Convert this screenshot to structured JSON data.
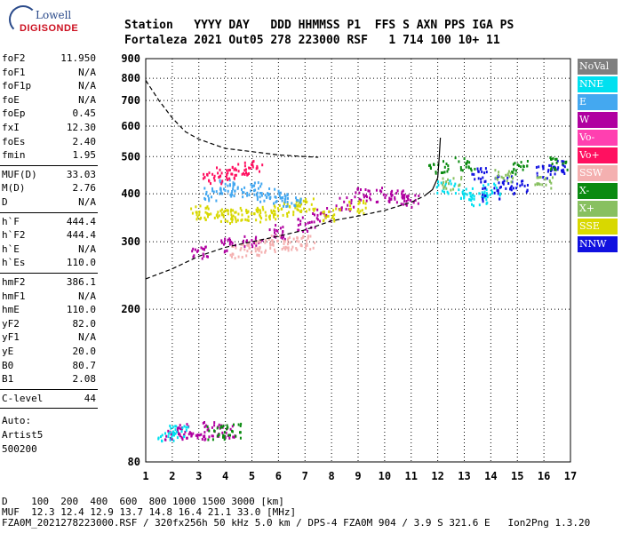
{
  "logo": {
    "line1": "Lowell",
    "line2": "DIGISONDE"
  },
  "header": {
    "line1": "Station   YYYY DAY   DDD HHMMSS P1  FFS S AXN PPS IGA PS",
    "line2": "Fortaleza 2021 Out05 278 223000 RSF   1 714 100 10+ 11"
  },
  "params": {
    "g1": [
      [
        "foF2",
        "11.950"
      ],
      [
        "foF1",
        "N/A"
      ],
      [
        "foF1p",
        "N/A"
      ],
      [
        "foE",
        "N/A"
      ],
      [
        "foEp",
        "0.45"
      ],
      [
        "fxI",
        "12.30"
      ],
      [
        "foEs",
        "2.40"
      ],
      [
        "fmin",
        "1.95"
      ]
    ],
    "g2": [
      [
        "MUF(D)",
        "33.03"
      ],
      [
        "M(D)",
        "2.76"
      ],
      [
        "D",
        "N/A"
      ]
    ],
    "g3": [
      [
        "h`F",
        "444.4"
      ],
      [
        "h`F2",
        "444.4"
      ],
      [
        "h`E",
        "N/A"
      ],
      [
        "h`Es",
        "110.0"
      ]
    ],
    "g4": [
      [
        "hmF2",
        "386.1"
      ],
      [
        "hmF1",
        "N/A"
      ],
      [
        "hmE",
        "110.0"
      ],
      [
        "yF2",
        "82.0"
      ],
      [
        "yF1",
        "N/A"
      ],
      [
        "yE",
        "20.0"
      ],
      [
        "B0",
        "80.7"
      ],
      [
        "B1",
        "2.08"
      ]
    ],
    "g5": [
      [
        "C-level",
        "44"
      ]
    ],
    "auto": [
      "Auto:",
      "Artist5",
      "500200"
    ]
  },
  "legend": [
    {
      "label": "NoVal",
      "color": "#7f7f7f"
    },
    {
      "label": "NNE",
      "color": "#00e0f0"
    },
    {
      "label": "E",
      "color": "#44a8f0"
    },
    {
      "label": "W",
      "color": "#b000a0"
    },
    {
      "label": "Vo-",
      "color": "#ff40b0"
    },
    {
      "label": "Vo+",
      "color": "#ff1060"
    },
    {
      "label": "SSW",
      "color": "#f4b0b0"
    },
    {
      "label": "X-",
      "color": "#0a8a10"
    },
    {
      "label": "X+",
      "color": "#88c060"
    },
    {
      "label": "SSE",
      "color": "#d8d800"
    },
    {
      "label": "NNW",
      "color": "#1010e0"
    }
  ],
  "chart_data": {
    "type": "scatter",
    "x_ticks": [
      "1",
      "2",
      "3",
      "4",
      "5",
      "6",
      "7",
      "8",
      "9",
      "10",
      "11",
      "12",
      "13",
      "14",
      "15",
      "16",
      "17"
    ],
    "y_ticks": [
      "80",
      "200",
      "300",
      "400",
      "500",
      "600",
      "700",
      "800",
      "900"
    ],
    "xlim": [
      1,
      17
    ],
    "ylim": [
      80,
      900
    ],
    "y_scale": "log",
    "clusters": [
      {
        "series": "W",
        "points": [
          [
            3.0,
            285
          ],
          [
            4.0,
            295
          ],
          [
            5.0,
            305
          ],
          [
            6.0,
            320
          ],
          [
            7.0,
            335
          ],
          [
            7.6,
            355
          ],
          [
            8.5,
            380
          ],
          [
            9.2,
            400
          ]
        ]
      },
      {
        "series": "W",
        "points": [
          [
            10.0,
            400
          ],
          [
            10.5,
            395
          ],
          [
            11.0,
            385
          ]
        ]
      },
      {
        "series": "SSE",
        "points": [
          [
            3.0,
            360
          ],
          [
            3.5,
            355
          ],
          [
            4.0,
            350
          ],
          [
            4.5,
            355
          ],
          [
            5.0,
            355
          ],
          [
            5.5,
            360
          ],
          [
            6.0,
            365
          ],
          [
            6.5,
            370
          ],
          [
            7.0,
            375
          ],
          [
            8.0,
            355
          ],
          [
            9.0,
            370
          ]
        ]
      },
      {
        "series": "E",
        "points": [
          [
            3.5,
            400
          ],
          [
            4.0,
            420
          ],
          [
            4.5,
            410
          ],
          [
            5.0,
            415
          ],
          [
            5.5,
            400
          ],
          [
            6.0,
            395
          ],
          [
            6.5,
            385
          ]
        ]
      },
      {
        "series": "NNE",
        "points": [
          [
            12.3,
            420
          ],
          [
            13.0,
            400
          ],
          [
            13.5,
            390
          ],
          [
            14.0,
            410
          ]
        ]
      },
      {
        "series": "NNW",
        "points": [
          [
            13.5,
            450
          ],
          [
            14.0,
            400
          ],
          [
            14.5,
            430
          ],
          [
            15.0,
            420
          ],
          [
            16.0,
            460
          ],
          [
            16.5,
            470
          ]
        ]
      },
      {
        "series": "X-",
        "points": [
          [
            12.0,
            470
          ],
          [
            13.0,
            480
          ],
          [
            15.0,
            470
          ],
          [
            16.5,
            480
          ]
        ]
      },
      {
        "series": "SSW",
        "points": [
          [
            4.5,
            285
          ],
          [
            5.0,
            290
          ],
          [
            5.5,
            295
          ],
          [
            6.0,
            300
          ],
          [
            6.5,
            298
          ],
          [
            7.0,
            300
          ]
        ]
      },
      {
        "series": "Vo+",
        "points": [
          [
            3.5,
            445
          ],
          [
            4.0,
            455
          ],
          [
            4.5,
            465
          ],
          [
            5.0,
            470
          ]
        ]
      },
      {
        "series": "X+",
        "points": [
          [
            12.5,
            430
          ],
          [
            14.5,
            450
          ],
          [
            16.0,
            430
          ]
        ]
      },
      {
        "series": "W",
        "points": [
          [
            2.0,
            95
          ],
          [
            2.5,
            97
          ],
          [
            3.0,
            96
          ],
          [
            3.5,
            98
          ],
          [
            4.0,
            97
          ]
        ]
      },
      {
        "series": "NNE",
        "points": [
          [
            1.8,
            95
          ],
          [
            2.2,
            96
          ]
        ]
      },
      {
        "series": "X-",
        "points": [
          [
            3.6,
            96
          ],
          [
            4.2,
            97
          ]
        ]
      }
    ],
    "dashed_curve": [
      [
        1,
        790
      ],
      [
        1.5,
        700
      ],
      [
        2.0,
        630
      ],
      [
        2.5,
        580
      ],
      [
        3.0,
        555
      ],
      [
        4.0,
        525
      ],
      [
        5.0,
        515
      ],
      [
        6.0,
        505
      ],
      [
        7.0,
        500
      ],
      [
        7.5,
        498
      ]
    ],
    "dashed_curve_low": [
      [
        1,
        240
      ],
      [
        2.0,
        255
      ],
      [
        3.0,
        275
      ],
      [
        4.0,
        290
      ],
      [
        5.0,
        300
      ],
      [
        6.0,
        310
      ],
      [
        7.0,
        322
      ],
      [
        8.0,
        340
      ],
      [
        9.0,
        350
      ],
      [
        10.0,
        362
      ],
      [
        11.0,
        380
      ],
      [
        11.5,
        395
      ]
    ],
    "profile_curve": [
      [
        11.5,
        395
      ],
      [
        11.8,
        410
      ],
      [
        12.0,
        440
      ],
      [
        12.05,
        490
      ],
      [
        12.1,
        560
      ]
    ]
  },
  "footer": {
    "line1": "D    100  200  400  600  800 1000 1500 3000 [km]",
    "line2": "MUF  12.3 12.4 12.9 13.7 14.8 16.4 21.1 33.0 [MHz]",
    "line3": "FZA0M_2021278223000.RSF / 320fx256h 50 kHz 5.0 km / DPS-4 FZA0M 904 / 3.9 S 321.6 E   Ion2Png 1.3.20"
  }
}
